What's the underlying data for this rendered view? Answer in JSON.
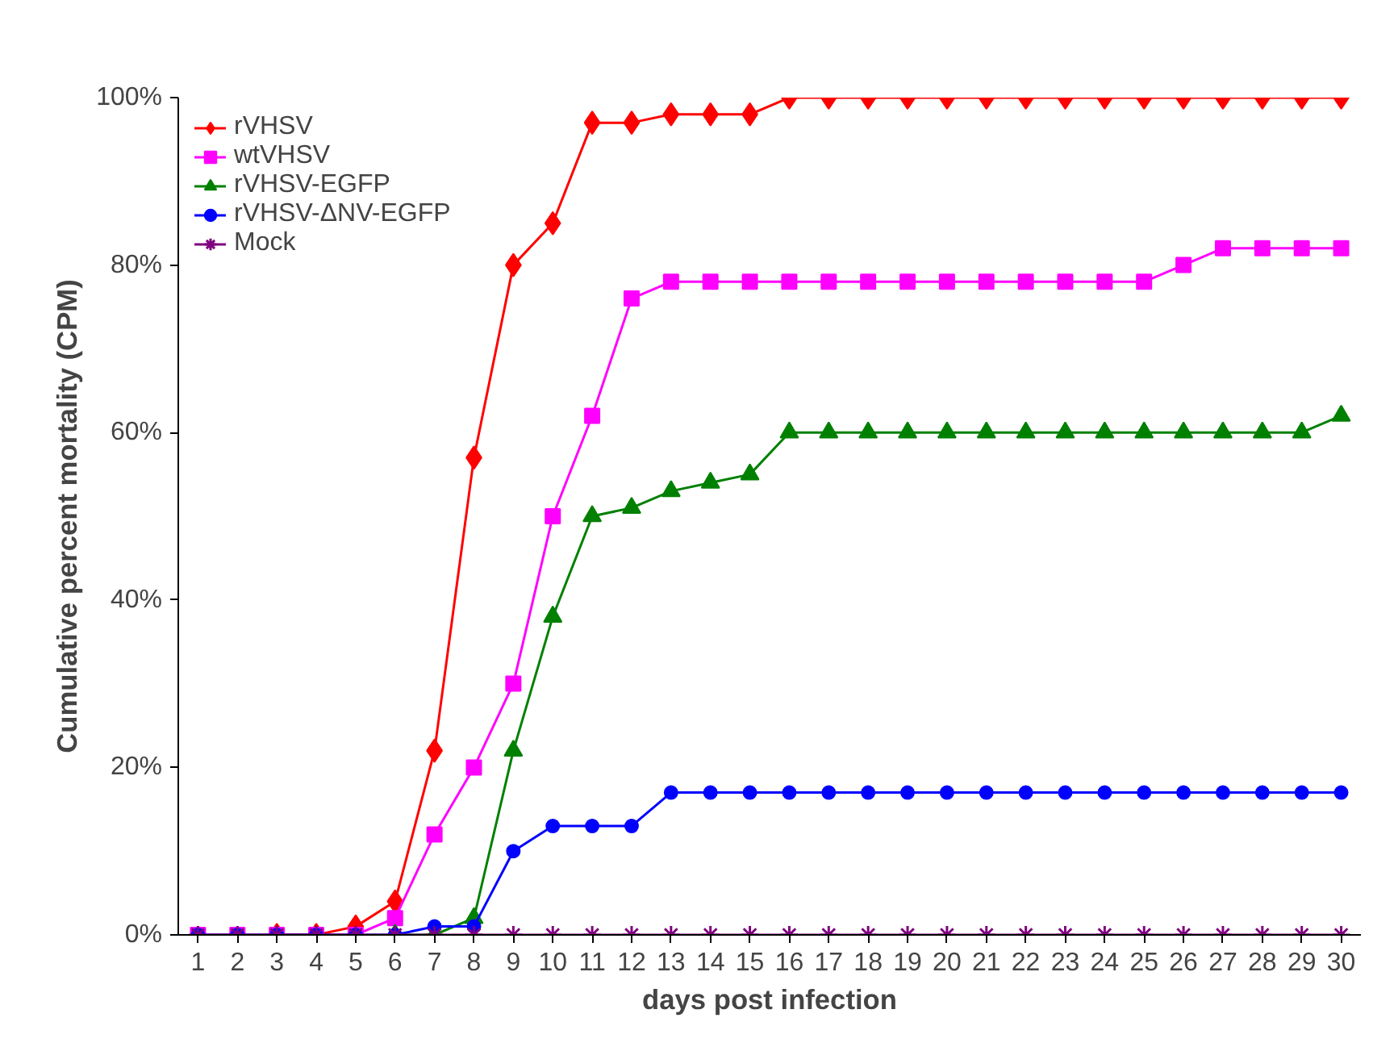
{
  "chart_data": {
    "type": "line",
    "xlabel": "days post infection",
    "ylabel": "Cumulative percent mortality (CPM)",
    "x": [
      1,
      2,
      3,
      4,
      5,
      6,
      7,
      8,
      9,
      10,
      11,
      12,
      13,
      14,
      15,
      16,
      17,
      18,
      19,
      20,
      21,
      22,
      23,
      24,
      25,
      26,
      27,
      28,
      29,
      30
    ],
    "series": [
      {
        "name": "rVHSV",
        "color": "#ff0000",
        "marker": "diamond",
        "values": [
          null,
          null,
          0,
          0,
          1,
          4,
          22,
          57,
          80,
          85,
          97,
          97,
          98,
          98,
          98,
          100,
          100,
          100,
          100,
          100,
          100,
          100,
          100,
          100,
          100,
          100,
          100,
          100,
          100,
          100
        ]
      },
      {
        "name": "wtVHSV",
        "color": "#ff00ff",
        "marker": "square",
        "values": [
          0,
          0,
          0,
          0,
          0,
          2,
          12,
          20,
          30,
          50,
          62,
          76,
          78,
          78,
          78,
          78,
          78,
          78,
          78,
          78,
          78,
          78,
          78,
          78,
          78,
          80,
          82,
          82,
          82,
          82
        ]
      },
      {
        "name": "rVHSV-EGFP",
        "color": "#008000",
        "marker": "triangle",
        "values": [
          null,
          null,
          null,
          null,
          null,
          0,
          0,
          2,
          22,
          38,
          50,
          51,
          53,
          54,
          55,
          60,
          60,
          60,
          60,
          60,
          60,
          60,
          60,
          60,
          60,
          60,
          60,
          60,
          60,
          62
        ]
      },
      {
        "name": "rVHSV-ΔNV-EGFP",
        "color": "#0000ff",
        "marker": "circle",
        "values": [
          0,
          0,
          0,
          0,
          0,
          0,
          1,
          1,
          10,
          13,
          13,
          13,
          17,
          17,
          17,
          17,
          17,
          17,
          17,
          17,
          17,
          17,
          17,
          17,
          17,
          17,
          17,
          17,
          17,
          17
        ]
      },
      {
        "name": "Mock",
        "color": "#800080",
        "marker": "cross",
        "values": [
          0,
          0,
          0,
          0,
          0,
          0,
          0,
          0,
          0,
          0,
          0,
          0,
          0,
          0,
          0,
          0,
          0,
          0,
          0,
          0,
          0,
          0,
          0,
          0,
          0,
          0,
          0,
          0,
          0,
          0
        ]
      }
    ],
    "xlim": [
      0.5,
      30.5
    ],
    "xticks": [
      1,
      2,
      3,
      4,
      5,
      6,
      7,
      8,
      9,
      10,
      11,
      12,
      13,
      14,
      15,
      16,
      17,
      18,
      19,
      20,
      21,
      22,
      23,
      24,
      25,
      26,
      27,
      28,
      29,
      30
    ],
    "ylim": [
      0,
      100
    ],
    "yticks": [
      {
        "value": 0,
        "label": "0%"
      },
      {
        "value": 20,
        "label": "20%"
      },
      {
        "value": 40,
        "label": "40%"
      },
      {
        "value": 60,
        "label": "60%"
      },
      {
        "value": 80,
        "label": "80%"
      },
      {
        "value": 100,
        "label": "100%"
      }
    ],
    "grid": false,
    "legend": "top left",
    "line_style": "solid"
  }
}
